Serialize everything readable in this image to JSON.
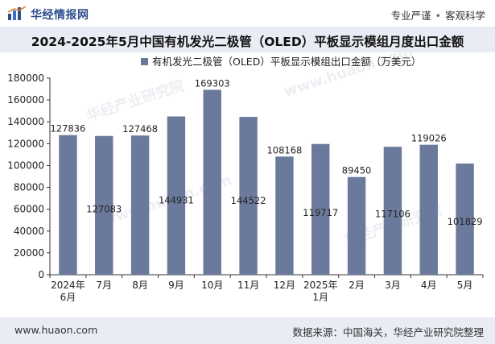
{
  "header": {
    "brand": "华经情报网",
    "slogan_left": "专业严谨",
    "slogan_sep": "•",
    "slogan_right": "客观科学"
  },
  "title": "2024-2025年5月中国有机发光二极管（OLED）平板显示模组月度出口金额",
  "footer": {
    "url": "www.huaon.com",
    "source": "数据来源：中国海关，华经产业研究院整理"
  },
  "watermarks": [
    "华经产业研究院",
    "www.huaon.com"
  ],
  "colors": {
    "bar": "#6b7a9c",
    "title_band": "#e9ecf4",
    "brand": "#2f4f8f"
  },
  "chart_data": {
    "type": "bar",
    "title": "2024-2025年5月中国有机发光二极管（OLED）平板显示模组月度出口金额",
    "xlabel": "",
    "ylabel": "",
    "ylim": [
      0,
      180000
    ],
    "yticks": [
      0,
      20000,
      40000,
      60000,
      80000,
      100000,
      120000,
      140000,
      160000,
      180000
    ],
    "legend_position": "top-center",
    "grid": false,
    "categories": [
      [
        "2024年",
        "6月"
      ],
      [
        "7月"
      ],
      [
        "8月"
      ],
      [
        "9月"
      ],
      [
        "10月"
      ],
      [
        "11月"
      ],
      [
        "12月"
      ],
      [
        "2025年",
        "1月"
      ],
      [
        "2月"
      ],
      [
        "3月"
      ],
      [
        "4月"
      ],
      [
        "5月"
      ]
    ],
    "series": [
      {
        "name": "有机发光二极管（OLED）平板显示模组出口金额（万美元）",
        "values": [
          127836,
          127083,
          127468,
          144931,
          169303,
          144522,
          108168,
          119717,
          89450,
          117106,
          119026,
          101829
        ]
      }
    ],
    "label_positions": [
      "above",
      "inside",
      "above",
      "inside",
      "above",
      "inside",
      "above",
      "inside",
      "above",
      "inside",
      "above",
      "inside"
    ]
  }
}
